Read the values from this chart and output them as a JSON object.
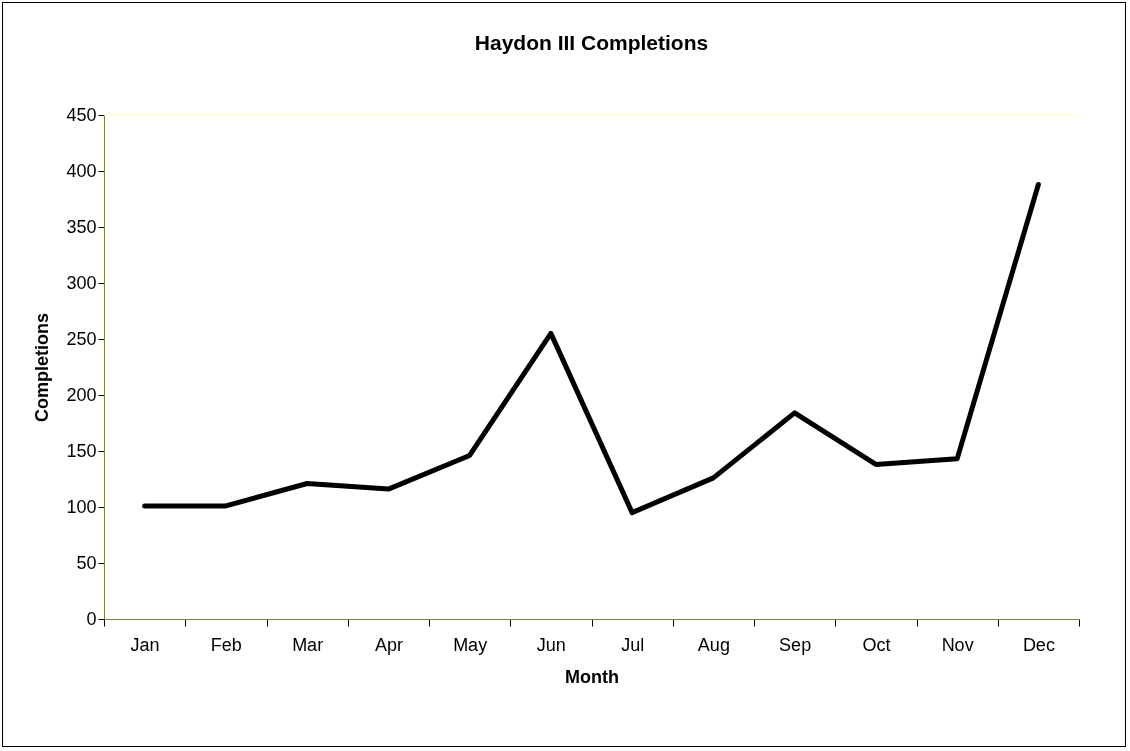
{
  "chart_data": {
    "type": "line",
    "title": "Haydon III Completions",
    "xlabel": "Month",
    "ylabel": "Completions",
    "categories": [
      "Jan",
      "Feb",
      "Mar",
      "Apr",
      "May",
      "Jun",
      "Jul",
      "Aug",
      "Sep",
      "Oct",
      "Nov",
      "Dec"
    ],
    "series": [
      {
        "color": "#000000",
        "values": [
          101,
          101,
          121,
          116,
          146,
          255,
          95,
          126,
          184,
          138,
          143,
          388
        ]
      }
    ],
    "ylim": [
      0,
      450
    ],
    "yticks": [
      0,
      50,
      100,
      150,
      200,
      250,
      300,
      350,
      400,
      450
    ],
    "grid": false,
    "legend": false,
    "marker": "none",
    "line_style": "solid"
  }
}
